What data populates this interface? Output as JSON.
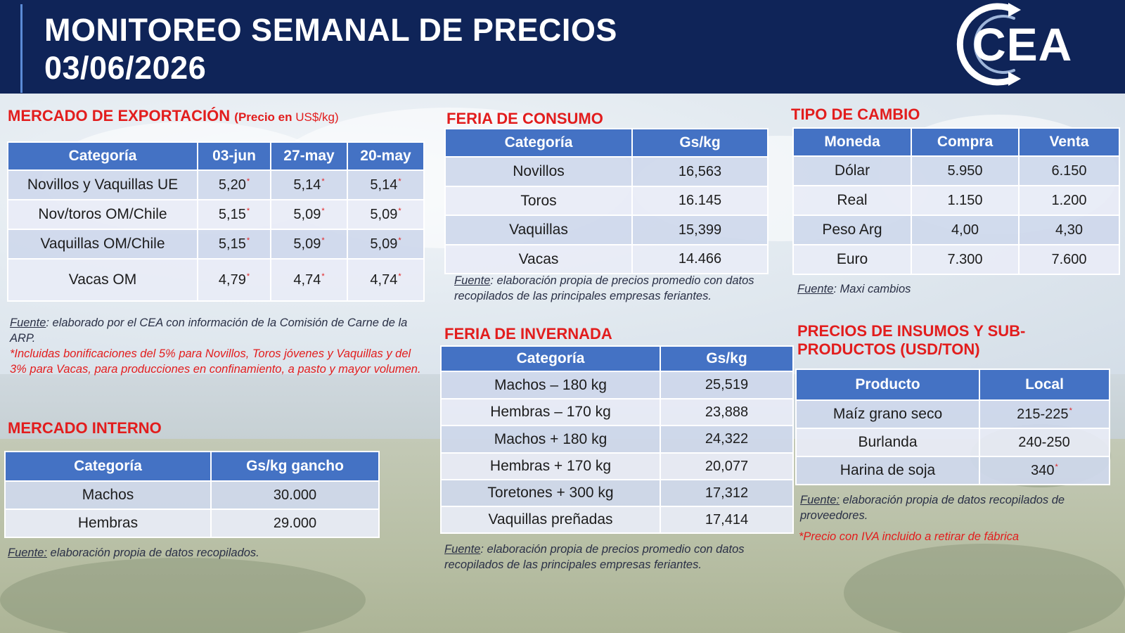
{
  "header": {
    "title_line1": "MONITOREO SEMANAL DE PRECIOS",
    "title_line2": "03/06/2026",
    "logo_text": "CEA"
  },
  "colors": {
    "header_bg": "#0f2458",
    "section_title": "#e21d1d",
    "table_header": "#4472c4"
  },
  "export_market": {
    "title": "MERCADO DE EXPORTACIÓN",
    "subtitle_bold": "(Precio en",
    "subtitle_regular": " US$/kg)",
    "headers": [
      "Categoría",
      "03-jun",
      "27-may",
      "20-may"
    ],
    "rows": [
      {
        "category": "Novillos y Vaquillas UE",
        "v1": "5,20",
        "v2": "5,14",
        "v3": "5,14"
      },
      {
        "category": "Nov/toros OM/Chile",
        "v1": "5,15",
        "v2": "5,09",
        "v3": "5,09"
      },
      {
        "category": "Vaquillas OM/Chile",
        "v1": "5,15",
        "v2": "5,09",
        "v3": "5,09"
      },
      {
        "category": "Vacas OM",
        "v1": "4,79",
        "v2": "4,74",
        "v3": "4,74"
      }
    ],
    "asterisk": "*",
    "source_label": "Fuente",
    "source_text": ": elaborado por el CEA con información de la Comisión de Carne de la ARP.",
    "footnote": "*Incluidas bonificaciones del 5% para Novillos, Toros jóvenes y Vaquillas y del 3% para Vacas, para producciones en confinamiento, a pasto y mayor volumen."
  },
  "internal_market": {
    "title": "MERCADO INTERNO",
    "headers": [
      "Categoría",
      "Gs/kg gancho"
    ],
    "rows": [
      {
        "category": "Machos",
        "value": "30.000"
      },
      {
        "category": "Hembras",
        "value": "29.000"
      }
    ],
    "source_label": "Fuente:",
    "source_text": " elaboración propia de datos recopilados."
  },
  "consumption_fair": {
    "title": "FERIA DE CONSUMO",
    "headers": [
      "Categoría",
      "Gs/kg"
    ],
    "rows": [
      {
        "category": "Novillos",
        "value": "16,563"
      },
      {
        "category": "Toros",
        "value": "16.145"
      },
      {
        "category": "Vaquillas",
        "value": "15,399"
      },
      {
        "category": "Vacas",
        "value": "14.466"
      }
    ],
    "source_label": "Fuente",
    "source_text": ": elaboración propia de precios promedio con datos recopilados de las principales empresas feriantes."
  },
  "wintering_fair": {
    "title": "FERIA DE INVERNADA",
    "headers": [
      "Categoría",
      "Gs/kg"
    ],
    "rows": [
      {
        "category": "Machos – 180 kg",
        "value": "25,519"
      },
      {
        "category": "Hembras – 170 kg",
        "value": "23,888"
      },
      {
        "category": "Machos + 180 kg",
        "value": "24,322"
      },
      {
        "category": "Hembras + 170 kg",
        "value": "20,077"
      },
      {
        "category": "Toretones + 300 kg",
        "value": "17,312"
      },
      {
        "category": "Vaquillas preñadas",
        "value": "17,414"
      }
    ],
    "source_label": "Fuente",
    "source_text": ": elaboración propia de precios promedio con datos recopilados de las principales empresas feriantes."
  },
  "exchange_rate": {
    "title": "TIPO DE CAMBIO",
    "headers": [
      "Moneda",
      "Compra",
      "Venta"
    ],
    "rows": [
      {
        "currency": "Dólar",
        "buy": "5.950",
        "sell": "6.150"
      },
      {
        "currency": "Real",
        "buy": "1.150",
        "sell": "1.200"
      },
      {
        "currency": "Peso Arg",
        "buy": "4,00",
        "sell": "4,30"
      },
      {
        "currency": "Euro",
        "buy": "7.300",
        "sell": "7.600"
      }
    ],
    "source_label": "Fuente",
    "source_text": ": Maxi cambios"
  },
  "inputs": {
    "title_line1": "PRECIOS DE INSUMOS Y SUB-",
    "title_line2": "PRODUCTOS (USD/TON)",
    "headers": [
      "Producto",
      "Local"
    ],
    "rows": [
      {
        "product": "Maíz grano seco",
        "value": "215-225",
        "star": "*"
      },
      {
        "product": "Burlanda",
        "value": "240-250",
        "star": ""
      },
      {
        "product": "Harina de soja",
        "value": "340",
        "star": "*"
      }
    ],
    "source_label": "Fuente:",
    "source_text": " elaboración propia de datos recopilados de proveedores.",
    "footnote": "*Precio con IVA incluido a retirar de fábrica"
  }
}
